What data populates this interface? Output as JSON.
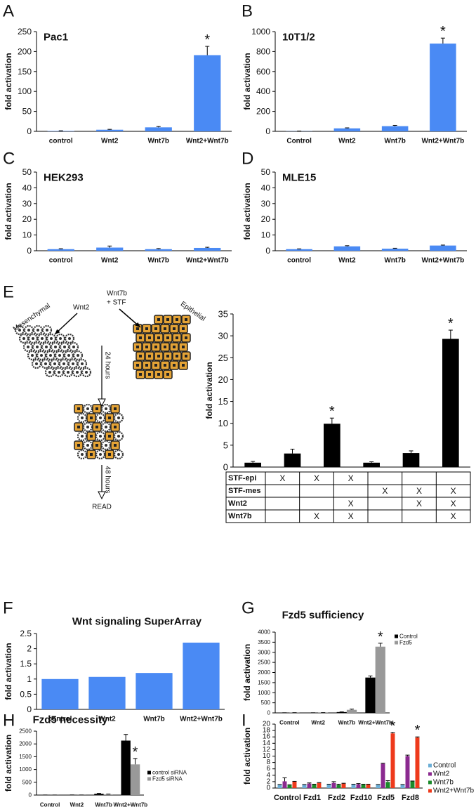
{
  "chart_data": [
    {
      "type": "bar",
      "panel": "A",
      "title": "Pac1",
      "ylabel": "fold activation",
      "categories": [
        "control",
        "Wnt2",
        "Wnt7b",
        "Wnt2+Wnt7b"
      ],
      "values": [
        1,
        4,
        10,
        191
      ],
      "errors": [
        0.5,
        1,
        2,
        22
      ],
      "color": "#4a8af4",
      "ylim": [
        0,
        250
      ],
      "yticks": [
        0,
        50,
        100,
        150,
        200,
        250
      ],
      "annotations": [
        {
          "text": "*",
          "category": "Wnt2+Wnt7b"
        }
      ]
    },
    {
      "type": "bar",
      "panel": "B",
      "title": "10T1/2",
      "ylabel": "fold activation",
      "categories": [
        "Control",
        "Wnt2",
        "Wnt7b",
        "Wnt2+Wnt7b"
      ],
      "values": [
        2,
        30,
        52,
        880
      ],
      "errors": [
        1,
        5,
        8,
        55
      ],
      "color": "#4a8af4",
      "ylim": [
        0,
        1000
      ],
      "yticks": [
        0,
        200,
        400,
        600,
        800,
        1000
      ],
      "annotations": [
        {
          "text": "*",
          "category": "Wnt2+Wnt7b"
        }
      ]
    },
    {
      "type": "bar",
      "panel": "C",
      "title": "HEK293",
      "ylabel": "fold activation",
      "categories": [
        "control",
        "Wnt2",
        "Wnt7b",
        "Wnt2+Wnt7b"
      ],
      "values": [
        1,
        2,
        1,
        1.8
      ],
      "errors": [
        0.3,
        1,
        0.4,
        0.4
      ],
      "color": "#4a8af4",
      "ylim": [
        0,
        50
      ],
      "yticks": [
        0,
        10,
        20,
        30,
        40,
        50
      ]
    },
    {
      "type": "bar",
      "panel": "D",
      "title": "MLE15",
      "ylabel": "fold activation",
      "categories": [
        "control",
        "Wnt2",
        "Wnt7b",
        "Wnt2+Wnt7b"
      ],
      "values": [
        1,
        2.8,
        1.3,
        3.3
      ],
      "errors": [
        0.2,
        0.4,
        0.3,
        0.3
      ],
      "color": "#4a8af4",
      "ylim": [
        0,
        50
      ],
      "yticks": [
        0,
        10,
        20,
        30,
        40,
        50
      ]
    },
    {
      "type": "bar",
      "panel": "E",
      "ylabel": "fold activation",
      "categories": [
        null,
        null,
        null,
        null,
        null,
        null
      ],
      "values": [
        1,
        3.1,
        9.9,
        1,
        3.2,
        29.3
      ],
      "errors": [
        0.3,
        1,
        1.3,
        0.2,
        0.5,
        2
      ],
      "color": "#000000",
      "ylim": [
        0,
        35
      ],
      "yticks": [
        0,
        5,
        10,
        15,
        20,
        25,
        30,
        35
      ],
      "annotations": [
        {
          "text": "*",
          "index": 2
        },
        {
          "text": "*",
          "index": 5
        }
      ],
      "table": {
        "rows": [
          {
            "label": "STF-epi",
            "marks": [
              "X",
              "X",
              "X",
              null,
              null,
              null
            ]
          },
          {
            "label": "STF-mes",
            "marks": [
              null,
              null,
              null,
              "X",
              "X",
              "X"
            ]
          },
          {
            "label": "Wnt2",
            "marks": [
              null,
              null,
              "X",
              null,
              "X",
              "X"
            ]
          },
          {
            "label": "Wnt7b",
            "marks": [
              null,
              "X",
              "X",
              null,
              null,
              "X"
            ]
          }
        ]
      },
      "diagram": {
        "mesenchymal": "Mesenchymal",
        "wnt2": "Wnt2",
        "wnt7b": "Wnt7b",
        "stf": "+ STF",
        "epithelial": "Epithelial",
        "step1": "24 hours",
        "step2": "48 hours",
        "read": "READ"
      }
    },
    {
      "type": "bar",
      "panel": "F",
      "title": "Wnt signaling SuperArray",
      "ylabel": "fold activation",
      "categories": [
        "control",
        "Wnt2",
        "Wnt7b",
        "Wnt2+Wnt7b"
      ],
      "values": [
        1,
        1.07,
        1.2,
        2.2
      ],
      "color": "#4a8af4",
      "ylim": [
        0,
        2.5
      ],
      "yticks": [
        0,
        0.5,
        1,
        1.5,
        2,
        2.5
      ]
    },
    {
      "type": "bar",
      "panel": "G",
      "title": "Fzd5 sufficiency",
      "ylabel": "fold activation",
      "categories": [
        "Control",
        "Wnt2",
        "Wnt7b",
        "Wnt2+Wnt7b"
      ],
      "series": [
        {
          "name": "Control",
          "color": "#000000",
          "values": [
            5,
            5,
            40,
            1750
          ],
          "errors": [
            2,
            2,
            10,
            80
          ]
        },
        {
          "name": "Fzd5",
          "color": "#999999",
          "values": [
            8,
            10,
            150,
            3280
          ],
          "errors": [
            3,
            3,
            40,
            170
          ]
        }
      ],
      "ylim": [
        0,
        4000
      ],
      "yticks": [
        0,
        500,
        1000,
        1500,
        2000,
        2500,
        3000,
        3500,
        4000
      ],
      "annotations": [
        {
          "text": "*",
          "category": "Wnt2+Wnt7b",
          "series": "Fzd5"
        }
      ]
    },
    {
      "type": "bar",
      "panel": "H",
      "title": "Fzd5 necessity",
      "ylabel": "fold activation",
      "categories": [
        "Control",
        "Wnt2",
        "Wnt7b",
        "Wnt2+Wnt7b"
      ],
      "series": [
        {
          "name": "control siRNA",
          "color": "#000000",
          "values": [
            3,
            5,
            50,
            2130
          ],
          "errors": [
            1,
            1,
            15,
            240
          ]
        },
        {
          "name": "Fzd5 siRNA",
          "color": "#999999",
          "values": [
            2,
            3,
            30,
            1200
          ],
          "errors": [
            1,
            1,
            10,
            230
          ]
        }
      ],
      "ylim": [
        0,
        2500
      ],
      "yticks": [
        0,
        500,
        1000,
        1500,
        2000,
        2500
      ],
      "annotations": [
        {
          "text": "*",
          "category": "Wnt2+Wnt7b",
          "series": "Fzd5 siRNA"
        }
      ]
    },
    {
      "type": "bar",
      "panel": "I",
      "ylabel": "fold activation",
      "categories": [
        "Control",
        "Fzd1",
        "Fzd2",
        "Fzd10",
        "Fzd5",
        "Fzd8"
      ],
      "series": [
        {
          "name": "Control",
          "color": "#6baed6",
          "values": [
            1,
            1,
            1.1,
            1.1,
            1,
            1
          ],
          "errors": [
            0.1,
            0.1,
            0.1,
            0.1,
            0.1,
            0.1
          ]
        },
        {
          "name": "Wnt2",
          "color": "#8b2a90",
          "values": [
            2.1,
            1.4,
            1.6,
            1.2,
            7.6,
            10
          ],
          "errors": [
            1.1,
            0.2,
            0.4,
            0.2,
            0.2,
            0.3
          ]
        },
        {
          "name": "Wnt7b",
          "color": "#1a8a2a",
          "values": [
            0.9,
            1.1,
            1,
            1.1,
            1.9,
            2.1
          ],
          "errors": [
            0.1,
            0.1,
            0.2,
            0.1,
            0.4,
            0.1
          ]
        },
        {
          "name": "Wnt2+Wnt7b",
          "color": "#ee3a1c",
          "values": [
            2,
            1.6,
            1.4,
            1.1,
            17.1,
            15.8
          ],
          "errors": [
            0.1,
            0.1,
            0.1,
            0.1,
            0.3,
            0.2
          ]
        }
      ],
      "ylim": [
        0,
        20
      ],
      "yticks": [
        0,
        2,
        4,
        6,
        8,
        10,
        12,
        14,
        16,
        18,
        20
      ],
      "annotations": [
        {
          "text": "*",
          "category": "Fzd5",
          "series": "Wnt2+Wnt7b"
        },
        {
          "text": "*",
          "category": "Fzd8",
          "series": "Wnt2+Wnt7b"
        }
      ]
    }
  ]
}
